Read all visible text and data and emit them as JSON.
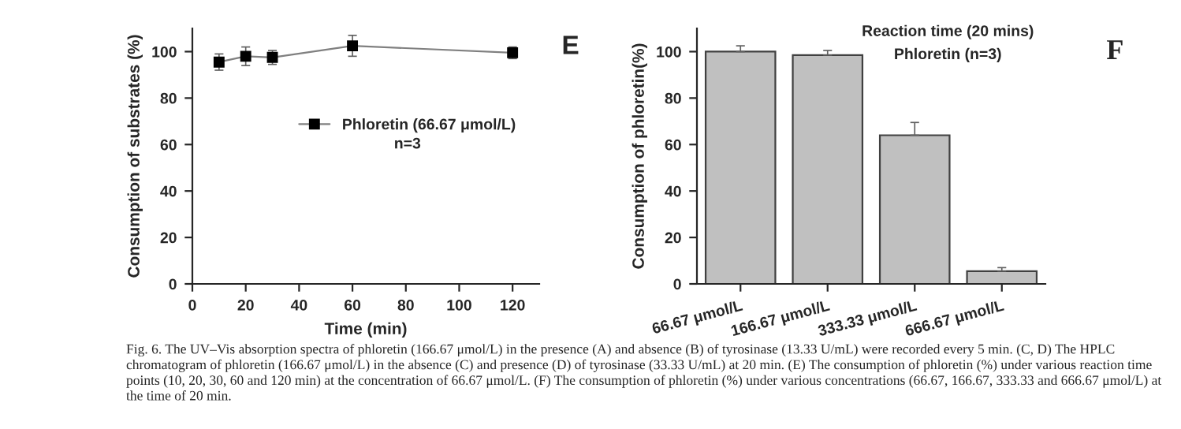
{
  "chart_data": [
    {
      "type": "line",
      "xlabel": "Time (min)",
      "ylabel": "Consumption of substrates (%)",
      "x": [
        10,
        20,
        30,
        60,
        120
      ],
      "series": [
        {
          "name": "Phloretin (66.67 μmol/L)",
          "color": "#000000",
          "values": [
            95.5,
            98,
            97.5,
            102.5,
            99.5
          ],
          "errors": [
            3.5,
            4,
            3,
            4.5,
            2.5
          ]
        }
      ],
      "marker": "square",
      "line_style": "solid",
      "legend": "center",
      "xlim": [
        0,
        130
      ],
      "xticks": [
        0,
        20,
        40,
        60,
        80,
        100,
        120
      ],
      "ylim": [
        0,
        110
      ],
      "yticks": [
        0,
        20,
        40,
        60,
        80,
        100
      ],
      "grid": false,
      "annotations": [
        {
          "text": "n=3"
        },
        {
          "text": "E"
        },
        {
          "text": "Fig. 6. The UV–Vis absorption spectra of phloretin (166.67 μmol/L) in the presence (A) and absence (B) of tyrosinase (13.33 U/mL) were recorded every 5 min. (C, D) The HPLC chromatogram of phloretin (166.67 μmol/L) in the absence (C) and presence (D) of tyrosinase (33.33 U/mL) at 20 min. (E) The consumption of phloretin (%) under various reaction time points (10, 20, 30, 60 and 120 min) at the concentration of 66.67 μmol/L. (F) The consumption of phloretin (%) under various concentrations (66.67, 166.67, 333.33 and 666.67 μmol/L) at the time of 20 min."
        }
      ]
    },
    {
      "type": "bar",
      "ylabel": "Consumption of phloretin(%)",
      "categories": [
        "66.67 μmol/L",
        "166.67 μmol/L",
        "333.33 μmol/L",
        "666.67 μmol/L"
      ],
      "values": [
        100,
        98.5,
        64,
        5.5
      ],
      "color": "#c0c0c0",
      "errors": [
        [
          100,
          102.5
        ],
        [
          98.5,
          100.5
        ],
        [
          64,
          69.5
        ],
        [
          5.5,
          7
        ]
      ],
      "ylim": [
        0,
        110
      ],
      "yticks": [
        0,
        20,
        40,
        60,
        80,
        100
      ],
      "grid": false,
      "annotations": [
        {
          "text": "Reaction time (20 mins)"
        },
        {
          "text": "Phloretin (n=3)"
        },
        {
          "text": "F"
        }
      ]
    }
  ]
}
